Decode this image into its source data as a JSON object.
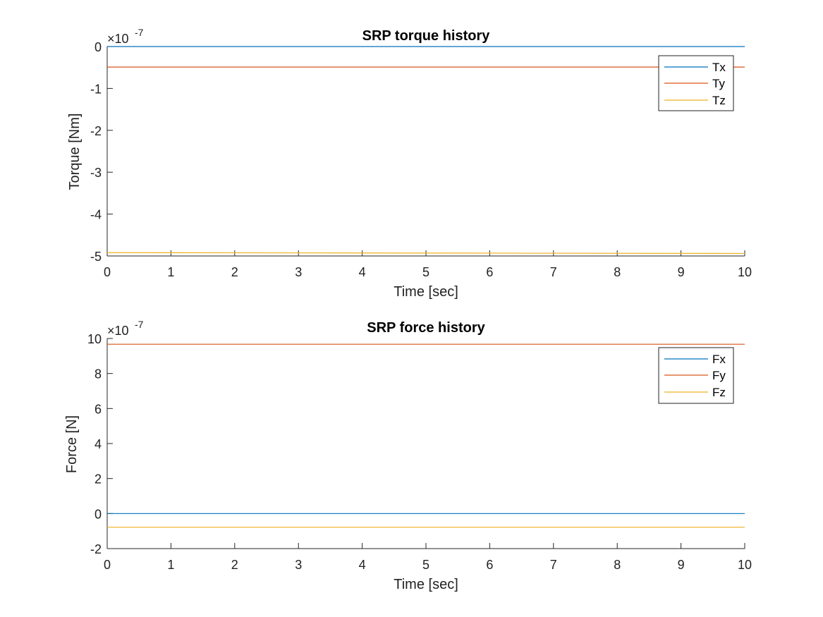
{
  "chart_data": [
    {
      "type": "line",
      "title": "SRP torque history",
      "xlabel": "Time [sec]",
      "ylabel": "Torque [Nm]",
      "exponent_label": "×10",
      "exponent_power": "-7",
      "xlim": [
        0,
        10
      ],
      "ylim": [
        -5,
        0
      ],
      "xticks": [
        "0",
        "1",
        "2",
        "3",
        "4",
        "5",
        "6",
        "7",
        "8",
        "9",
        "10"
      ],
      "yticks": [
        "0",
        "-1",
        "-2",
        "-3",
        "-4",
        "-5"
      ],
      "ytick_values": [
        0,
        -1,
        -2,
        -3,
        -4,
        -5
      ],
      "grid": false,
      "legend_position": "top-right",
      "x": [
        0,
        10
      ],
      "series": [
        {
          "name": "Tx",
          "color": "#0072BD",
          "values": [
            0.0,
            0.0
          ]
        },
        {
          "name": "Ty",
          "color": "#D95319",
          "values": [
            -0.49,
            -0.49
          ]
        },
        {
          "name": "Tz",
          "color": "#EDB120",
          "values": [
            -4.92,
            -4.94
          ]
        }
      ]
    },
    {
      "type": "line",
      "title": "SRP force history",
      "xlabel": "Time [sec]",
      "ylabel": "Force [N]",
      "exponent_label": "×10",
      "exponent_power": "-7",
      "xlim": [
        0,
        10
      ],
      "ylim": [
        -2,
        10
      ],
      "xticks": [
        "0",
        "1",
        "2",
        "3",
        "4",
        "5",
        "6",
        "7",
        "8",
        "9",
        "10"
      ],
      "yticks": [
        "10",
        "8",
        "6",
        "4",
        "2",
        "0",
        "-2"
      ],
      "ytick_values": [
        10,
        8,
        6,
        4,
        2,
        0,
        -2
      ],
      "grid": false,
      "legend_position": "top-right",
      "x": [
        0,
        10
      ],
      "series": [
        {
          "name": "Fx",
          "color": "#0072BD",
          "values": [
            0.0,
            0.0
          ]
        },
        {
          "name": "Fy",
          "color": "#D95319",
          "values": [
            9.67,
            9.67
          ]
        },
        {
          "name": "Fz",
          "color": "#EDB120",
          "values": [
            -0.78,
            -0.78
          ]
        }
      ]
    }
  ]
}
